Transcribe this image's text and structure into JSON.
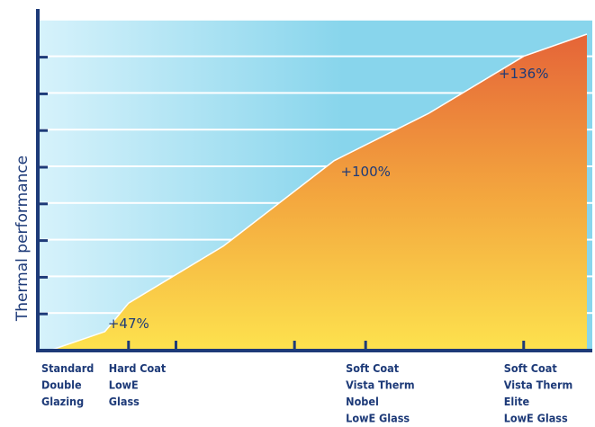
{
  "chart_data": {
    "type": "area",
    "title": "",
    "ylabel": "Thermal performance",
    "xlabel": "",
    "grid": true,
    "categories": [
      {
        "x": 0.0,
        "lines": [
          "Standard",
          "Double",
          "Glazing"
        ]
      },
      {
        "x": 1.0,
        "lines": [
          "Hard Coat",
          "LowE",
          "Glass"
        ]
      },
      {
        "x": 4.0,
        "lines": [
          "Soft Coat",
          "Vista Therm",
          "Nobel",
          "LowE Glass"
        ]
      },
      {
        "x": 6.0,
        "lines": [
          "Soft Coat",
          "Vista Therm",
          "Elite",
          "LowE Glass"
        ]
      }
    ],
    "x": [
      0.0,
      0.7,
      1.0,
      2.2,
      3.6,
      4.8,
      6.0,
      6.8
    ],
    "values": [
      0,
      6,
      15,
      33,
      60,
      75,
      93,
      100
    ],
    "xlim": [
      0,
      6.8
    ],
    "ylim": [
      0,
      100
    ],
    "annotations": [
      {
        "text": "+47%",
        "x": 1.0,
        "y": 6
      },
      {
        "text": "+100%",
        "x": 4.0,
        "y": 54
      },
      {
        "text": "+136%",
        "x": 6.0,
        "y": 85
      }
    ],
    "colors": {
      "band_light": "#d6f2fb",
      "band_dark": "#88d5ec",
      "fill_low": "#fde24e",
      "fill_mid": "#f3a53e",
      "fill_high": "#e56438",
      "axis": "#1d3a78",
      "text": "#1d3a78"
    }
  }
}
